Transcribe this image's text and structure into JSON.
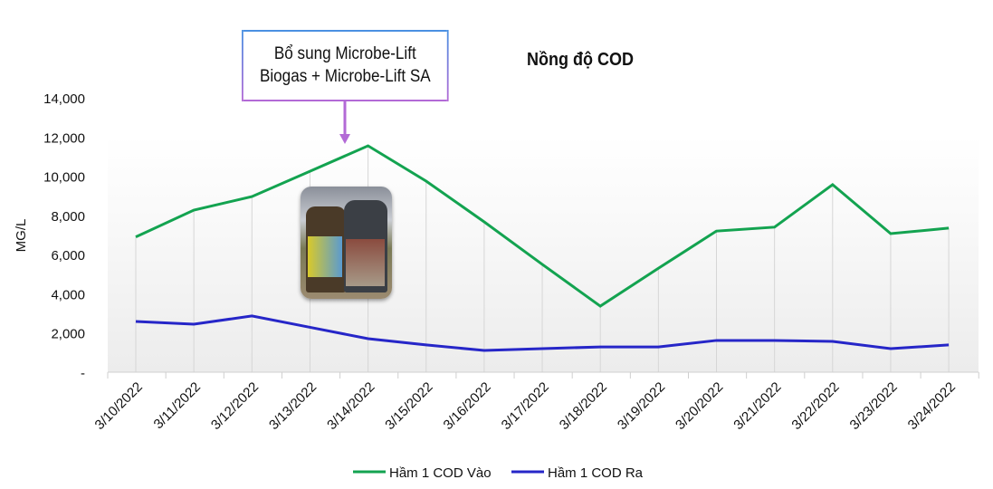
{
  "chart_data": {
    "type": "line",
    "title": "Nồng độ COD",
    "ylabel": "MG/L",
    "xlabel": "",
    "ylim": [
      0,
      14000
    ],
    "yticks": [
      "-",
      "2,000",
      "4,000",
      "6,000",
      "8,000",
      "10,000",
      "12,000",
      "14,000"
    ],
    "categories": [
      "3/10/2022",
      "3/11/2022",
      "3/12/2022",
      "3/13/2022",
      "3/14/2022",
      "3/15/2022",
      "3/16/2022",
      "3/17/2022",
      "3/18/2022",
      "3/19/2022",
      "3/20/2022",
      "3/21/2022",
      "3/22/2022",
      "3/23/2022",
      "3/24/2022"
    ],
    "series": [
      {
        "name": "Hầm 1  COD Vào",
        "color": "#13a350",
        "values": [
          6900,
          8270,
          8960,
          10250,
          11550,
          9750,
          7670,
          5500,
          3370,
          5300,
          7200,
          7400,
          9570,
          7070,
          7350
        ]
      },
      {
        "name": "Hầm 1 COD Ra",
        "color": "#2626c8",
        "values": [
          2590,
          2450,
          2870,
          2290,
          1710,
          1390,
          1110,
          1200,
          1290,
          1290,
          1620,
          1620,
          1570,
          1200,
          1390
        ]
      }
    ],
    "grid": "vertical lines at data points",
    "legend": "bottom",
    "annotation": {
      "lines": [
        "Bổ sung Microbe-Lift",
        "Biogas + Microbe-Lift SA"
      ],
      "points_to": "3/14/2022",
      "arrow_color": "#b36ad6"
    }
  }
}
